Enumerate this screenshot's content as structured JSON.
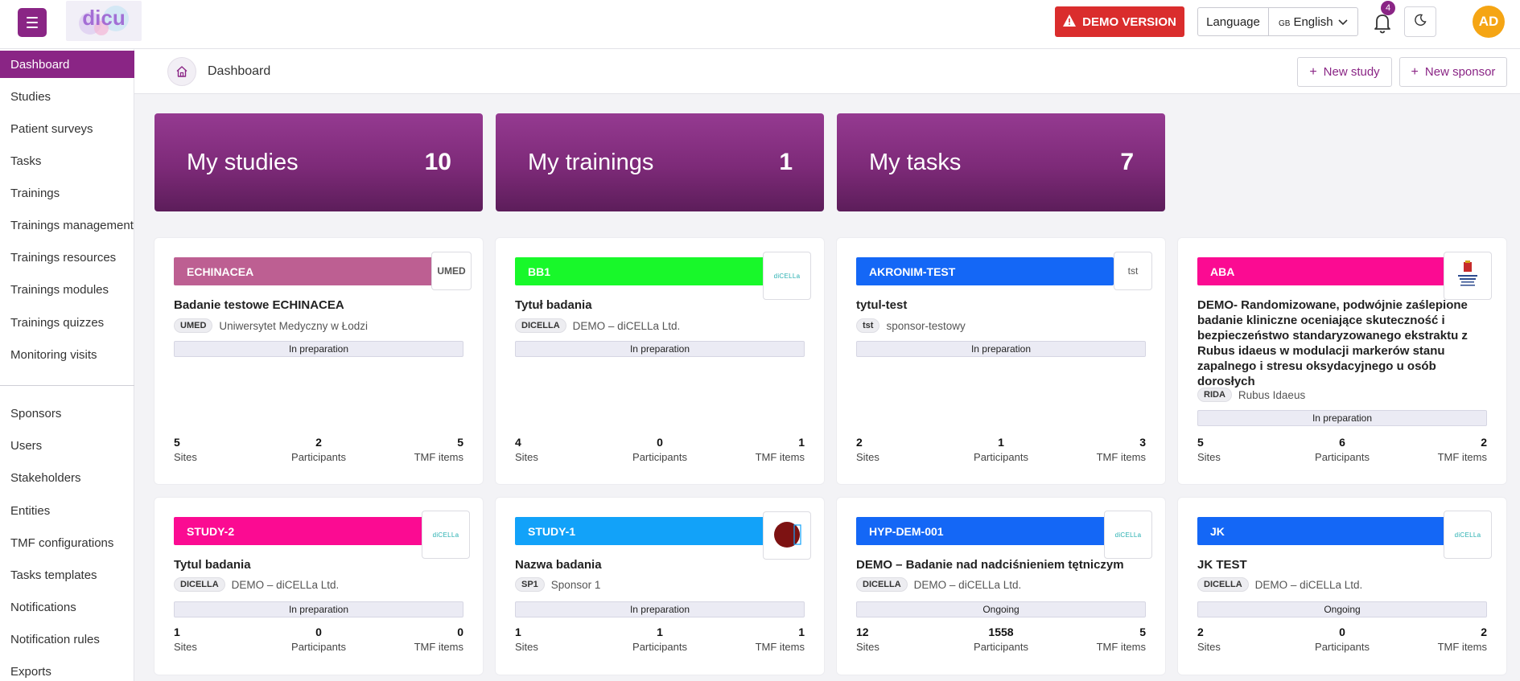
{
  "header": {
    "demo_label": "DEMO VERSION",
    "language_label": "Language",
    "language_flag": "GB",
    "language_value": "English",
    "notification_count": "4",
    "avatar_initials": "AD",
    "brand_color": "#8a2585",
    "demo_color": "#da2d2d",
    "avatar_color": "#f5a514"
  },
  "sidebar": {
    "items": [
      {
        "label": "Dashboard",
        "active": true
      },
      {
        "label": "Studies"
      },
      {
        "label": "Patient surveys"
      },
      {
        "label": "Tasks"
      },
      {
        "label": "Trainings"
      },
      {
        "label": "Trainings management"
      },
      {
        "label": "Trainings resources"
      },
      {
        "label": "Trainings modules"
      },
      {
        "label": "Trainings quizzes"
      },
      {
        "label": "Monitoring visits"
      },
      {
        "label": "Sponsors"
      },
      {
        "label": "Users"
      },
      {
        "label": "Stakeholders"
      },
      {
        "label": "Entities"
      },
      {
        "label": "TMF configurations"
      },
      {
        "label": "Tasks templates"
      },
      {
        "label": "Notifications"
      },
      {
        "label": "Notification rules"
      },
      {
        "label": "Exports"
      }
    ]
  },
  "breadcrumb": {
    "title": "Dashboard",
    "new_study": "New study",
    "new_sponsor": "New sponsor"
  },
  "stats": [
    {
      "label": "My studies",
      "count": "10"
    },
    {
      "label": "My trainings",
      "count": "1"
    },
    {
      "label": "My tasks",
      "count": "7"
    }
  ],
  "metric_labels": {
    "sites": "Sites",
    "participants": "Participants",
    "tmf": "TMF items"
  },
  "studies": [
    {
      "code": "ECHINACEA",
      "color": "#bd5f92",
      "logo": "UMED",
      "title": "Badanie testowe ECHINACEA",
      "sponsor_tag": "UMED",
      "sponsor_name": "Uniwersytet Medyczny w Łodzi",
      "status": "In preparation",
      "sites": "5",
      "participants": "2",
      "tmf": "5"
    },
    {
      "code": "BB1",
      "color": "#18f82a",
      "logo": "diCELLa",
      "title": "Tytuł badania",
      "sponsor_tag": "DICELLA",
      "sponsor_name": "DEMO – diCELLa Ltd.",
      "status": "In preparation",
      "sites": "4",
      "participants": "0",
      "tmf": "1"
    },
    {
      "code": "AKRONIM-TEST",
      "color": "#1467f6",
      "logo": "tst",
      "title": "tytul-test",
      "sponsor_tag": "tst",
      "sponsor_name": "sponsor-testowy",
      "status": "In preparation",
      "sites": "2",
      "participants": "1",
      "tmf": "3"
    },
    {
      "code": "ABA",
      "color": "#fb0b92",
      "logo": "crest",
      "title": "DEMO- Randomizowane, podwójnie zaślepione badanie kliniczne oceniające skuteczność i bezpieczeństwo standaryzowanego ekstraktu z Rubus idaeus w modulacji markerów stanu zapalnego i stresu oksydacyjnego u osób dorosłych",
      "sponsor_tag": "RIDA",
      "sponsor_name": "Rubus Idaeus",
      "status": "In preparation",
      "sites": "5",
      "participants": "6",
      "tmf": "2"
    },
    {
      "code": "STUDY-2",
      "color": "#fb0b92",
      "logo": "diCELLa",
      "title": "Tytul badania",
      "sponsor_tag": "DICELLA",
      "sponsor_name": "DEMO – diCELLa Ltd.",
      "status": "In preparation",
      "sites": "1",
      "participants": "0",
      "tmf": "0"
    },
    {
      "code": "STUDY-1",
      "color": "#12a2f9",
      "logo": "circle",
      "title": "Nazwa badania",
      "sponsor_tag": "SP1",
      "sponsor_name": "Sponsor 1",
      "status": "In preparation",
      "sites": "1",
      "participants": "1",
      "tmf": "1"
    },
    {
      "code": "HYP-DEM-001",
      "color": "#1467f6",
      "logo": "diCELLa",
      "title": "DEMO – Badanie nad nadciśnieniem tętniczym",
      "sponsor_tag": "DICELLA",
      "sponsor_name": "DEMO – diCELLa Ltd.",
      "status": "Ongoing",
      "sites": "12",
      "participants": "1558",
      "tmf": "5"
    },
    {
      "code": "JK",
      "color": "#1467f6",
      "logo": "diCELLa",
      "title": "JK TEST",
      "sponsor_tag": "DICELLA",
      "sponsor_name": "DEMO – diCELLa Ltd.",
      "status": "Ongoing",
      "sites": "2",
      "participants": "0",
      "tmf": "2"
    }
  ]
}
